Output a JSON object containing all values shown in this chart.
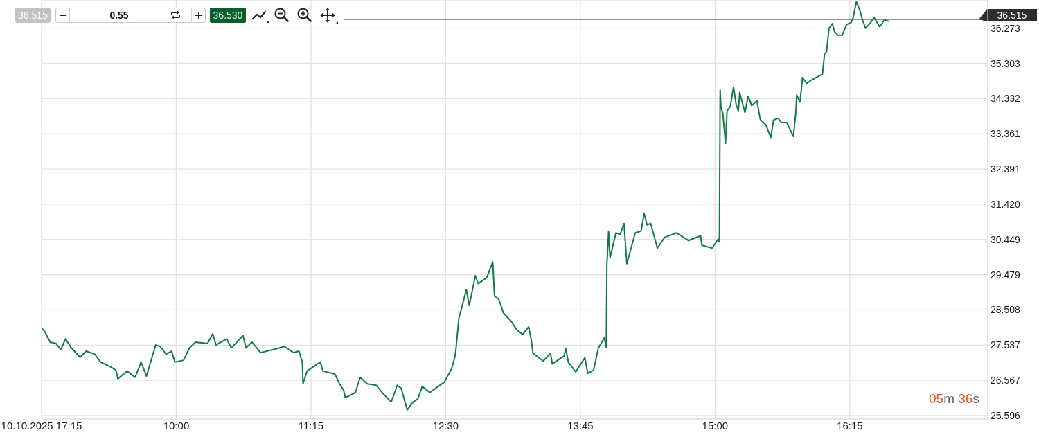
{
  "chart_data": {
    "type": "line",
    "x": [
      8.75,
      8.778,
      8.83,
      8.885,
      8.929,
      8.972,
      9.027,
      9.107,
      9.163,
      9.243,
      9.298,
      9.384,
      9.44,
      9.458,
      9.544,
      9.618,
      9.674,
      9.723,
      9.809,
      9.852,
      9.905,
      9.957,
      9.988,
      10.068,
      10.123,
      10.179,
      10.289,
      10.339,
      10.369,
      10.468,
      10.511,
      10.619,
      10.647,
      10.702,
      10.782,
      10.893,
      11.004,
      11.087,
      11.139,
      11.17,
      11.176,
      11.213,
      11.336,
      11.361,
      11.472,
      11.515,
      11.552,
      11.568,
      11.663,
      11.706,
      11.773,
      11.857,
      11.909,
      11.995,
      12.05,
      12.087,
      12.143,
      12.198,
      12.241,
      12.283,
      12.352,
      12.432,
      12.488,
      12.555,
      12.586,
      12.596,
      12.623,
      12.651,
      12.691,
      12.719,
      12.775,
      12.802,
      12.882,
      12.937,
      12.953,
      12.993,
      13.036,
      13.103,
      13.159,
      13.214,
      13.27,
      13.294,
      13.31,
      13.405,
      13.473,
      13.489,
      13.599,
      13.614,
      13.639,
      13.707,
      13.792,
      13.818,
      13.873,
      13.916,
      13.972,
      13.99,
      13.996,
      14.012,
      14.025,
      14.08,
      14.119,
      14.155,
      14.181,
      14.259,
      14.314,
      14.341,
      14.369,
      14.403,
      14.464,
      14.532,
      14.643,
      14.754,
      14.865,
      14.877,
      14.973,
      15.028,
      15.04,
      15.047,
      15.055,
      15.072,
      15.097,
      15.111,
      15.142,
      15.171,
      15.195,
      15.216,
      15.228,
      15.277,
      15.308,
      15.339,
      15.388,
      15.419,
      15.472,
      15.517,
      15.542,
      15.585,
      15.616,
      15.665,
      15.727,
      15.75,
      15.757,
      15.788,
      15.811,
      15.85,
      15.893,
      15.934,
      15.996,
      16.016,
      16.034,
      16.057,
      16.088,
      16.108,
      16.139,
      16.18,
      16.219,
      16.262,
      16.281,
      16.311,
      16.342,
      16.365,
      16.396,
      16.435,
      16.478,
      16.528,
      16.571,
      16.612
    ],
    "values": [
      28.01,
      27.92,
      27.62,
      27.58,
      27.41,
      27.71,
      27.46,
      27.2,
      27.37,
      27.29,
      27.07,
      26.95,
      26.85,
      26.61,
      26.82,
      26.65,
      27.07,
      26.68,
      27.54,
      27.5,
      27.29,
      27.37,
      27.07,
      27.12,
      27.46,
      27.62,
      27.58,
      27.85,
      27.54,
      27.71,
      27.46,
      27.8,
      27.46,
      27.62,
      27.33,
      27.41,
      27.5,
      27.33,
      27.37,
      27.07,
      26.47,
      26.82,
      27.07,
      26.82,
      26.74,
      26.47,
      26.3,
      26.09,
      26.23,
      26.65,
      26.47,
      26.43,
      26.23,
      25.97,
      26.43,
      26.35,
      25.75,
      25.97,
      26.05,
      26.4,
      26.23,
      26.4,
      26.52,
      26.89,
      27.22,
      27.45,
      28.29,
      28.59,
      29.07,
      28.63,
      29.45,
      29.23,
      29.4,
      29.83,
      28.89,
      28.8,
      28.42,
      28.21,
      27.96,
      27.83,
      28.04,
      27.69,
      27.31,
      27.1,
      27.31,
      27.02,
      27.24,
      27.45,
      27.06,
      26.8,
      27.19,
      26.76,
      26.85,
      27.45,
      27.74,
      27.48,
      29.74,
      30.68,
      29.95,
      30.63,
      30.59,
      30.89,
      29.78,
      30.63,
      30.68,
      31.17,
      30.85,
      30.89,
      30.21,
      30.51,
      30.63,
      30.42,
      30.55,
      30.29,
      30.21,
      30.46,
      30.38,
      34.57,
      34.08,
      33.93,
      33.1,
      33.99,
      34.12,
      34.65,
      34.18,
      33.99,
      34.5,
      33.95,
      34.4,
      34.14,
      34.27,
      33.76,
      33.6,
      33.26,
      33.74,
      33.79,
      33.67,
      33.67,
      33.29,
      33.99,
      34.43,
      34.24,
      34.91,
      34.75,
      34.84,
      34.91,
      35.0,
      35.57,
      35.61,
      36.27,
      36.4,
      36.18,
      36.08,
      36.08,
      36.37,
      36.43,
      36.56,
      37.0,
      36.78,
      36.53,
      36.27,
      36.4,
      36.56,
      36.31,
      36.5,
      36.46
    ],
    "color": "#127a47",
    "xlim": [
      8.75,
      17.53
    ],
    "xticks": [
      {
        "value": 8.75,
        "label": "10.10.2025 17:15"
      },
      {
        "value": 10,
        "label": "10:00"
      },
      {
        "value": 11.25,
        "label": "11:15"
      },
      {
        "value": 12.5,
        "label": "12:30"
      },
      {
        "value": 13.75,
        "label": "13:45"
      },
      {
        "value": 15,
        "label": "15:00"
      },
      {
        "value": 16.25,
        "label": "16:15"
      }
    ],
    "ylim": [
      25.5,
      37.05
    ],
    "yticks": [
      25.596,
      26.567,
      27.537,
      28.508,
      29.479,
      30.449,
      {
        "value": 31.42,
        "label": "31.420"
      },
      32.391,
      33.361,
      34.332,
      35.303,
      36.273
    ],
    "grid": true,
    "ref_lines": [
      {
        "axis": "y",
        "value": 36.515,
        "label": "36.515",
        "color": "#2b2f33"
      }
    ],
    "annotations": [
      "36.515",
      "0.55",
      "36.530",
      "05m 36s"
    ]
  }
}
